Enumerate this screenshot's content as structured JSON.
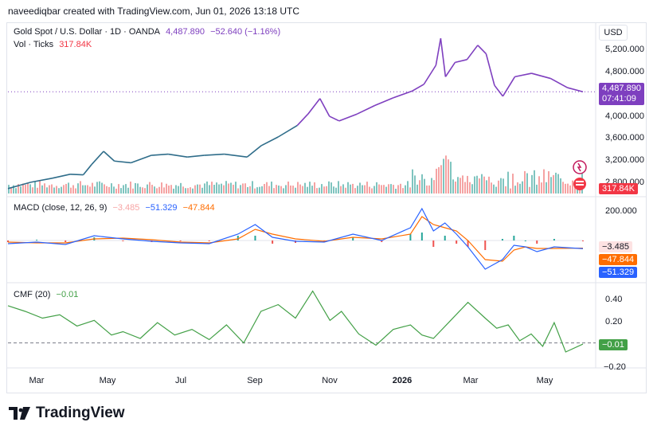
{
  "header": {
    "credit": "naveediqbar created with TradingView.com, Jun 01, 2026 13:18 UTC"
  },
  "legend": {
    "symbol": "Gold Spot / U.S. Dollar · 1D · OANDA",
    "price": "4,487.890",
    "change": "−52.640 (−1.16%)",
    "vol_label": "Vol · Ticks",
    "vol_value": "317.84K",
    "macd_label": "MACD (close, 12, 26, 9)",
    "macd_hist": "−3.485",
    "macd_line": "−51.329",
    "macd_signal": "−47.844",
    "cmf_label": "CMF (20)",
    "cmf_value": "−0.01"
  },
  "currency_button": "USD",
  "price_tag": {
    "price": "4,487.890",
    "countdown": "07:41:09"
  },
  "vol_tag": "317.84K",
  "macd_tags": {
    "hist": "−3.485",
    "signal": "−47.844",
    "macd": "−51.329"
  },
  "cmf_tag": "−0.01",
  "brand": "TradingView",
  "colors": {
    "price_up": "#7e3fbf",
    "price_early": "#2f6d8a",
    "macd": "#2962ff",
    "signal": "#ff6d00",
    "cmf": "#43a047",
    "vol_up": "#7fc4bf",
    "vol_down": "#f5a3a3",
    "tag_price": "#7e3fbf",
    "tag_vol": "#f23645"
  },
  "chart_data": [
    {
      "type": "line",
      "title": "Gold Spot / U.S. Dollar · 1D · OANDA",
      "x_ticks": [
        "Mar",
        "May",
        "Jul",
        "Sep",
        "Nov",
        "2026",
        "Mar",
        "May"
      ],
      "y_ticks": [
        "5,200.000",
        "4,800.000",
        "4,000.000",
        "3,600.000",
        "3,200.000",
        "2,800.000"
      ],
      "ylim": [
        2700,
        5450
      ],
      "series": [
        {
          "name": "Gold Spot / U.S. Dollar",
          "x": [
            "2025-02-01",
            "2025-02-20",
            "2025-03-10",
            "2025-03-25",
            "2025-04-05",
            "2025-04-12",
            "2025-04-22",
            "2025-05-01",
            "2025-05-15",
            "2025-06-01",
            "2025-06-15",
            "2025-07-01",
            "2025-07-15",
            "2025-08-01",
            "2025-08-20",
            "2025-09-01",
            "2025-09-15",
            "2025-10-01",
            "2025-10-10",
            "2025-10-20",
            "2025-10-28",
            "2025-11-05",
            "2025-11-20",
            "2025-12-05",
            "2025-12-20",
            "2026-01-05",
            "2026-01-15",
            "2026-01-25",
            "2026-01-29",
            "2026-02-02",
            "2026-02-10",
            "2026-02-20",
            "2026-03-01",
            "2026-03-08",
            "2026-03-15",
            "2026-03-22",
            "2026-04-01",
            "2026-04-15",
            "2026-05-01",
            "2026-05-15",
            "2026-05-28"
          ],
          "y": [
            2800,
            2910,
            2980,
            3050,
            3040,
            3220,
            3450,
            3280,
            3250,
            3380,
            3400,
            3350,
            3380,
            3400,
            3350,
            3550,
            3700,
            3900,
            4100,
            4370,
            4060,
            3980,
            4100,
            4250,
            4380,
            4500,
            4620,
            4950,
            5420,
            4750,
            5000,
            5050,
            5300,
            5150,
            4600,
            4410,
            4750,
            4810,
            4720,
            4560,
            4487.89
          ]
        }
      ]
    },
    {
      "type": "bar",
      "title": "Vol · Ticks",
      "series": [
        {
          "name": "Vol · Ticks",
          "last_value": "317.84K"
        }
      ]
    },
    {
      "type": "line",
      "title": "MACD (close, 12, 26, 9)",
      "y_ticks": [
        "200.000"
      ],
      "series": [
        {
          "name": "MACD",
          "last_value": -51.329
        },
        {
          "name": "Signal",
          "last_value": -47.844
        },
        {
          "name": "Histogram",
          "last_value": -3.485
        }
      ],
      "macd_x": [
        0,
        0.05,
        0.1,
        0.15,
        0.2,
        0.25,
        0.3,
        0.35,
        0.4,
        0.43,
        0.46,
        0.5,
        0.55,
        0.6,
        0.65,
        0.7,
        0.72,
        0.74,
        0.76,
        0.78,
        0.8,
        0.83,
        0.86,
        0.88,
        0.9,
        0.92,
        0.95,
        1.0
      ],
      "macd_values": [
        -20,
        -10,
        -25,
        30,
        10,
        -5,
        -15,
        -20,
        40,
        100,
        20,
        -5,
        -10,
        40,
        0,
        80,
        200,
        60,
        110,
        40,
        -40,
        -180,
        -120,
        -30,
        -40,
        -70,
        -40,
        -51.3
      ],
      "signal_values": [
        -10,
        -15,
        -15,
        10,
        15,
        5,
        -10,
        -15,
        10,
        70,
        40,
        10,
        -5,
        20,
        10,
        40,
        150,
        100,
        80,
        60,
        0,
        -120,
        -130,
        -60,
        -40,
        -50,
        -50,
        -47.8
      ]
    },
    {
      "type": "line",
      "title": "CMF (20)",
      "y_ticks": [
        "0.40",
        "0.20",
        "−0.20"
      ],
      "ylim": [
        -0.22,
        0.5
      ],
      "series": [
        {
          "name": "CMF",
          "x": [
            0,
            0.03,
            0.06,
            0.09,
            0.12,
            0.15,
            0.18,
            0.2,
            0.23,
            0.26,
            0.29,
            0.32,
            0.35,
            0.38,
            0.41,
            0.44,
            0.47,
            0.5,
            0.53,
            0.56,
            0.58,
            0.61,
            0.64,
            0.67,
            0.7,
            0.72,
            0.74,
            0.77,
            0.8,
            0.83,
            0.85,
            0.87,
            0.89,
            0.91,
            0.93,
            0.95,
            0.97,
            1.0
          ],
          "y": [
            0.33,
            0.28,
            0.22,
            0.25,
            0.15,
            0.2,
            0.07,
            0.1,
            0.04,
            0.18,
            0.07,
            0.12,
            0.03,
            0.16,
            0.0,
            0.28,
            0.34,
            0.22,
            0.46,
            0.2,
            0.28,
            0.08,
            -0.02,
            0.12,
            0.16,
            0.07,
            0.04,
            0.2,
            0.36,
            0.22,
            0.13,
            0.16,
            0.02,
            0.08,
            -0.03,
            0.18,
            -0.08,
            -0.01
          ]
        }
      ]
    }
  ]
}
